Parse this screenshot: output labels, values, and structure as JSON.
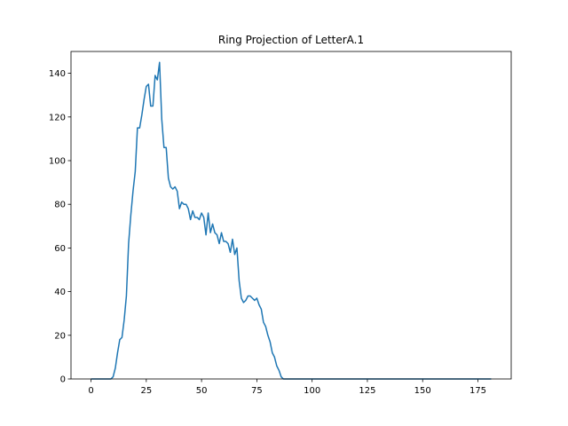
{
  "chart_data": {
    "type": "line",
    "title": "Ring Projection of LetterA.1",
    "x": [
      0,
      1,
      2,
      3,
      4,
      5,
      6,
      7,
      8,
      9,
      10,
      11,
      12,
      13,
      14,
      15,
      16,
      17,
      18,
      19,
      20,
      21,
      22,
      23,
      24,
      25,
      26,
      27,
      28,
      29,
      30,
      31,
      32,
      33,
      34,
      35,
      36,
      37,
      38,
      39,
      40,
      41,
      42,
      43,
      44,
      45,
      46,
      47,
      48,
      49,
      50,
      51,
      52,
      53,
      54,
      55,
      56,
      57,
      58,
      59,
      60,
      61,
      62,
      63,
      64,
      65,
      66,
      67,
      68,
      69,
      70,
      71,
      72,
      73,
      74,
      75,
      76,
      77,
      78,
      79,
      80,
      81,
      82,
      83,
      84,
      85,
      86,
      87,
      88,
      89,
      90,
      91,
      92,
      93,
      94,
      95,
      96,
      97,
      98,
      99,
      100,
      101,
      102,
      103,
      104,
      105,
      106,
      107,
      108,
      109,
      110,
      111,
      112,
      113,
      114,
      115,
      116,
      117,
      118,
      119,
      120,
      121,
      122,
      123,
      124,
      125,
      126,
      127,
      128,
      129,
      130,
      131,
      132,
      133,
      134,
      135,
      136,
      137,
      138,
      139,
      140,
      141,
      142,
      143,
      144,
      145,
      146,
      147,
      148,
      149,
      150,
      151,
      152,
      153,
      154,
      155,
      156,
      157,
      158,
      159,
      160,
      161,
      162,
      163,
      164,
      165,
      166,
      167,
      168,
      169,
      170,
      171,
      172,
      173,
      174,
      175,
      176,
      177,
      178,
      179,
      180,
      181
    ],
    "series": [
      {
        "color": "#1f77b4",
        "values": [
          0,
          0,
          0,
          0,
          0,
          0,
          0,
          0,
          0,
          0,
          1,
          5,
          12,
          18,
          19,
          27,
          38,
          62,
          75,
          86,
          95,
          115,
          115,
          121,
          128,
          134,
          135,
          125,
          125,
          139,
          137,
          145,
          119,
          106,
          106,
          92,
          88,
          87,
          88,
          86,
          78,
          81,
          80,
          80,
          78,
          73,
          77,
          74,
          74,
          73,
          76,
          74,
          66,
          76,
          67,
          71,
          67,
          66,
          62,
          67,
          63,
          63,
          62,
          58,
          64,
          57,
          60,
          45,
          37,
          35,
          36,
          38,
          38,
          37,
          36,
          37,
          34,
          32,
          26,
          24,
          20,
          17,
          12,
          10,
          6,
          4,
          1,
          0,
          0,
          0,
          0,
          0,
          0,
          0,
          0,
          0,
          0,
          0,
          0,
          0,
          0,
          0,
          0,
          0,
          0,
          0,
          0,
          0,
          0,
          0,
          0,
          0,
          0,
          0,
          0,
          0,
          0,
          0,
          0,
          0,
          0,
          0,
          0,
          0,
          0,
          0,
          0,
          0,
          0,
          0,
          0,
          0,
          0,
          0,
          0,
          0,
          0,
          0,
          0,
          0,
          0,
          0,
          0,
          0,
          0,
          0,
          0,
          0,
          0,
          0,
          0,
          0,
          0,
          0,
          0,
          0,
          0,
          0,
          0,
          0,
          0,
          0,
          0,
          0,
          0,
          0,
          0,
          0,
          0,
          0,
          0,
          0,
          0,
          0,
          0,
          0,
          0,
          0,
          0,
          0,
          0,
          0
        ]
      }
    ],
    "xlim": [
      -9.05,
      190.05
    ],
    "xticks": [
      0,
      25,
      50,
      75,
      100,
      125,
      150,
      175
    ],
    "ylim": [
      0,
      150
    ],
    "yticks": [
      0,
      20,
      40,
      60,
      80,
      100,
      120,
      140
    ]
  }
}
